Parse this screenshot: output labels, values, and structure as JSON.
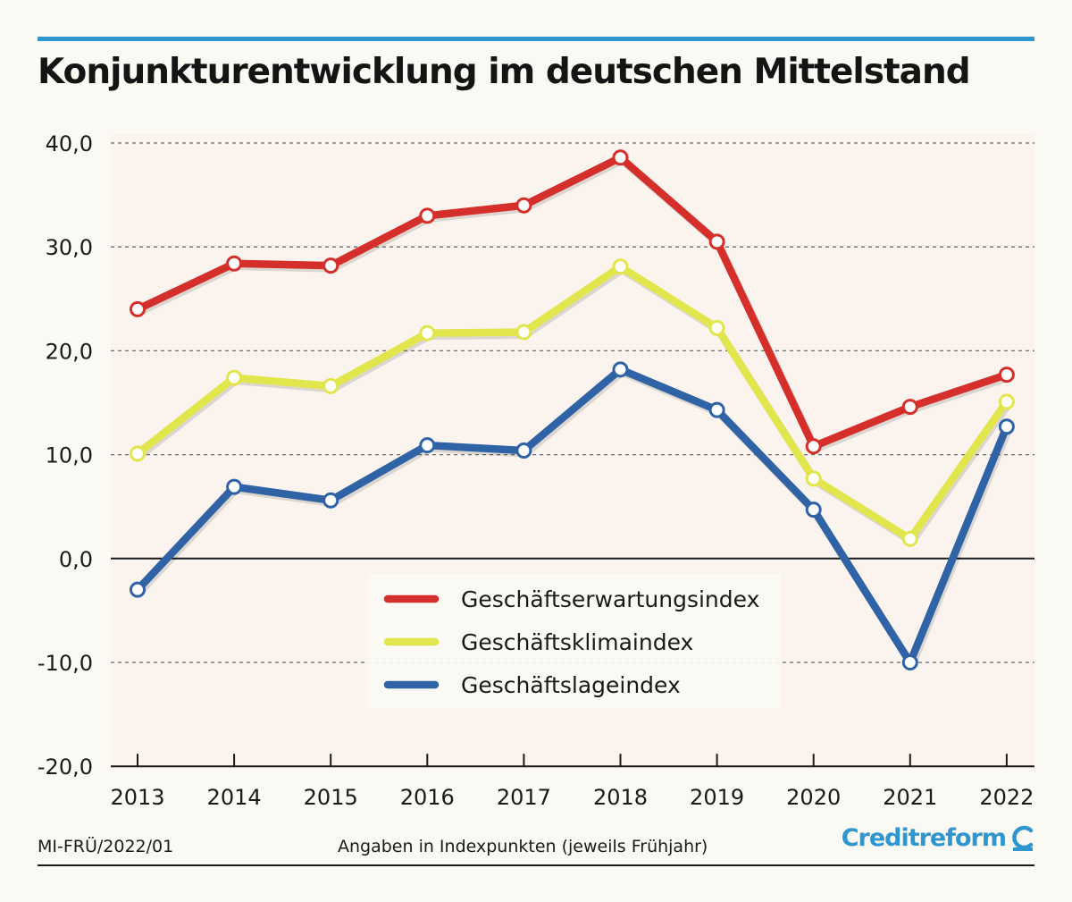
{
  "header": {
    "title": "Konjunkturentwicklung im deutschen Mittelstand"
  },
  "footer": {
    "code": "MI-FRÜ/2022/01",
    "note": "Angaben in Indexpunkten (jeweils Frühjahr)",
    "brand": "Creditreform"
  },
  "colors": {
    "accent": "#2f96cf",
    "red": "#d42f2a",
    "yellow": "#e0e64b",
    "blue": "#2f63a5"
  },
  "icons": {
    "brand": "creditreform-c-logo-icon"
  },
  "chart_data": {
    "type": "line",
    "title": "Konjunkturentwicklung im deutschen Mittelstand",
    "xlabel": "",
    "ylabel": "",
    "categories": [
      "2013",
      "2014",
      "2015",
      "2016",
      "2017",
      "2018",
      "2019",
      "2020",
      "2021",
      "2022"
    ],
    "ylim": [
      -20,
      40
    ],
    "yticks": [
      "40,0",
      "30,0",
      "20,0",
      "10,0",
      "0,0",
      "-10,0",
      "-20,0"
    ],
    "grid": true,
    "legend_position": "bottom-center",
    "series": [
      {
        "name": "Geschäftserwartungsindex",
        "color": "#d42f2a",
        "values": [
          24.0,
          28.4,
          28.2,
          33.0,
          34.0,
          38.6,
          30.5,
          10.8,
          14.6,
          17.7
        ]
      },
      {
        "name": "Geschäftsklimaindex",
        "color": "#e0e64b",
        "values": [
          10.1,
          17.4,
          16.6,
          21.7,
          21.8,
          28.1,
          22.2,
          7.7,
          1.9,
          15.1
        ]
      },
      {
        "name": "Geschäftslageindex",
        "color": "#2f63a5",
        "values": [
          -3.0,
          6.9,
          5.6,
          10.9,
          10.4,
          18.2,
          14.3,
          4.7,
          -10.0,
          12.7
        ]
      }
    ]
  }
}
